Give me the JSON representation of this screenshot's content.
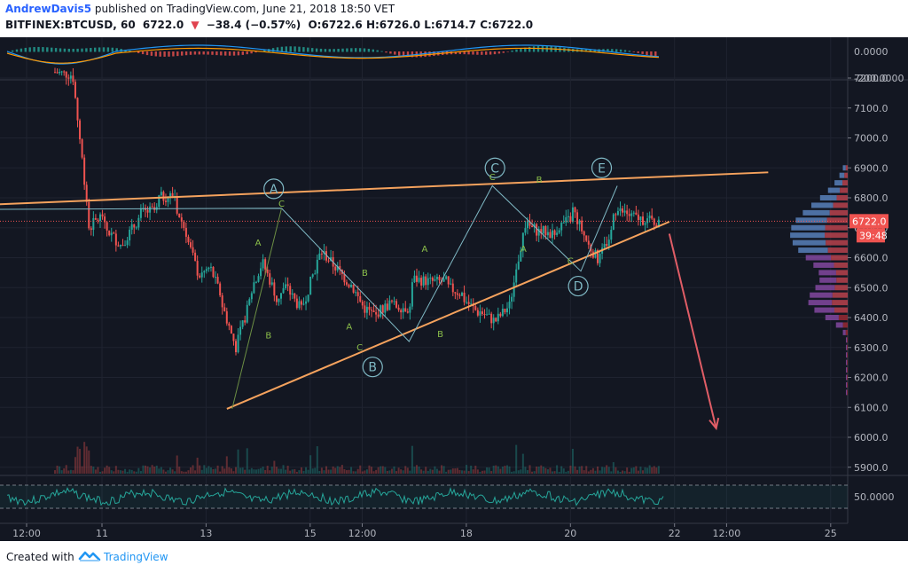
{
  "header": {
    "author": "AndrewDavis5",
    "published_text": "published on TradingView.com, June 21, 2018 18:50 VET",
    "symbol": "BITFINEX:BTCUSD, 60",
    "last": "6722.0",
    "change_arrow": "▼",
    "change": "−38.4 (−0.57%)",
    "ohlc": "O:6722.6 H:6726.0 L:6714.7 C:6722.0"
  },
  "footer": {
    "created_with": "Created with",
    "brand": "TradingView"
  },
  "colors": {
    "background": "#131722",
    "up": "#26a69a",
    "down": "#ef5350",
    "trendline": "#f5a25d",
    "wave": "#7fb8c4",
    "arrow": "#e05d66"
  },
  "chart_data": [
    {
      "type": "line",
      "panel": "macd-indicator",
      "y_ticks": [
        "0.0000",
        "-200.0000"
      ],
      "note_visible": "histogram with MACD and signal lines"
    },
    {
      "type": "candlestick",
      "panel": "price",
      "price_scale": [
        "7200.0",
        "7100.0",
        "7000.0",
        "6900.0",
        "6800.0",
        "6700.0",
        "6600.0",
        "6500.0",
        "6400.0",
        "6300.0",
        "6200.0",
        "6100.0",
        "6000.0",
        "5900.0"
      ],
      "ylim": [
        5900,
        7200
      ],
      "last_price_label": "6722.0",
      "countdown_label": "39:48",
      "x_ticks": [
        "12:00",
        "11",
        "13",
        "15",
        "12:00",
        "18",
        "20",
        "22",
        "12:00",
        "25"
      ],
      "ohlc_path": [
        [
          0,
          7220,
          7220
        ],
        [
          8,
          7200,
          6750
        ],
        [
          15,
          6700,
          6800
        ],
        [
          22,
          6700,
          6620
        ],
        [
          30,
          6650,
          6730
        ],
        [
          38,
          6750,
          6720
        ],
        [
          46,
          6800,
          6860
        ],
        [
          54,
          6760,
          6680
        ],
        [
          59,
          6650,
          6520
        ],
        [
          64,
          6540,
          6580
        ],
        [
          69,
          6560,
          6480
        ],
        [
          74,
          6440,
          6300
        ],
        [
          80,
          6300,
          6420
        ],
        [
          86,
          6480,
          6600
        ],
        [
          92,
          6580,
          6480
        ],
        [
          98,
          6460,
          6560
        ],
        [
          104,
          6480,
          6380
        ],
        [
          110,
          6450,
          6640
        ],
        [
          118,
          6620,
          6560
        ],
        [
          125,
          6560,
          6500
        ],
        [
          131,
          6510,
          6420
        ],
        [
          137,
          6430,
          6380
        ],
        [
          143,
          6420,
          6470
        ],
        [
          150,
          6440,
          6330
        ],
        [
          158,
          6530,
          6520
        ],
        [
          166,
          6520,
          6540
        ],
        [
          174,
          6500,
          6490
        ],
        [
          181,
          6460,
          6400
        ],
        [
          188,
          6420,
          6380
        ],
        [
          195,
          6390,
          6440
        ],
        [
          201,
          6440,
          6720
        ],
        [
          208,
          6710,
          6680
        ],
        [
          215,
          6690,
          6650
        ],
        [
          222,
          6700,
          6710
        ],
        [
          229,
          6760,
          6640
        ],
        [
          236,
          6640,
          6570
        ],
        [
          241,
          6600,
          6640
        ],
        [
          247,
          6760,
          6750
        ],
        [
          254,
          6740,
          6720
        ],
        [
          261,
          6730,
          6700
        ],
        [
          268,
          6720,
          6722
        ]
      ],
      "trendlines": [
        {
          "name": "upper-resistance",
          "from": [
            6.5,
            6760
          ],
          "to": [
            23.8,
            6885
          ]
        },
        {
          "name": "lower-support",
          "from": [
            13.4,
            6095
          ],
          "to": [
            21.9,
            6720
          ]
        }
      ],
      "wave_labels": [
        "A",
        "B",
        "C",
        "D",
        "E"
      ],
      "sub_labels": [
        "A",
        "B",
        "C",
        "A",
        "B",
        "C",
        "A",
        "B",
        "C",
        "A",
        "B",
        "C"
      ],
      "projection_arrow": {
        "from": [
          21.9,
          6680
        ],
        "to": [
          22.8,
          6030
        ]
      },
      "volume_profile": true
    },
    {
      "type": "line",
      "panel": "rsi-indicator",
      "y_ticks": [
        "50.0000"
      ]
    }
  ]
}
